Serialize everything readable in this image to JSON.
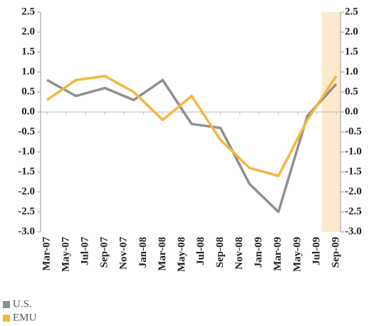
{
  "chart_data": {
    "type": "line",
    "x": [
      "Mar-07",
      "Jun-07",
      "Sep-07",
      "Dec-07",
      "Mar-08",
      "Jun-08",
      "Sep-08",
      "Dec-08",
      "Mar-09",
      "Jun-09",
      "Sep-09"
    ],
    "xlim": [
      "Mar-07",
      "Sep-09"
    ],
    "xticks": [
      "Mar-07",
      "May-07",
      "Jul-07",
      "Sep-07",
      "Nov-07",
      "Jan-08",
      "Mar-08",
      "May-08",
      "Jul-08",
      "Sep-08",
      "Nov-08",
      "Jan-09",
      "Mar-09",
      "May-09",
      "Jul-09",
      "Sep-09"
    ],
    "ylim": [
      -3,
      2.5
    ],
    "yticks": [
      {
        "value": -3,
        "label": "-3.0"
      },
      {
        "value": -2.5,
        "label": "-2.5"
      },
      {
        "value": -2,
        "label": "-2.0"
      },
      {
        "value": -1.5,
        "label": "-1.5"
      },
      {
        "value": -1,
        "label": "-1.0"
      },
      {
        "value": -0.5,
        "label": "-0.5"
      },
      {
        "value": 0,
        "label": "0.0"
      },
      {
        "value": 0.5,
        "label": "0.5"
      },
      {
        "value": 1,
        "label": "1.0"
      },
      {
        "value": 1.5,
        "label": "1.5"
      },
      {
        "value": 2,
        "label": "2.0"
      },
      {
        "value": 2.5,
        "label": "2.5"
      }
    ],
    "y2lim": [
      -3,
      2.5
    ],
    "y2ticks": [
      {
        "value": -3,
        "label": "-3.0"
      },
      {
        "value": -2.5,
        "label": "-2.5"
      },
      {
        "value": -2,
        "label": "-2.0"
      },
      {
        "value": -1.5,
        "label": "-1.5"
      },
      {
        "value": -1,
        "label": "-1.0"
      },
      {
        "value": -0.5,
        "label": "-0.5"
      },
      {
        "value": 0,
        "label": "0.0"
      },
      {
        "value": 0.5,
        "label": "0.5"
      },
      {
        "value": 1,
        "label": "1.0"
      },
      {
        "value": 1.5,
        "label": "1.5"
      },
      {
        "value": 2,
        "label": "2.0"
      },
      {
        "value": 2.5,
        "label": "2.5"
      }
    ],
    "highlight_from": "Jul-09",
    "highlight_color": "#fde9cc",
    "series": [
      {
        "name": "U.S.",
        "color": "#8f8f8f",
        "values": [
          0.8,
          0.4,
          0.6,
          0.3,
          0.8,
          -0.3,
          -0.4,
          -1.8,
          -2.5,
          -0.1,
          0.7
        ]
      },
      {
        "name": "EMU",
        "color": "#f7b53f",
        "values": [
          0.3,
          0.8,
          0.9,
          0.5,
          -0.2,
          0.4,
          -0.7,
          -1.4,
          -1.6,
          -0.2,
          0.9
        ]
      }
    ],
    "legend": "bottom-left"
  }
}
